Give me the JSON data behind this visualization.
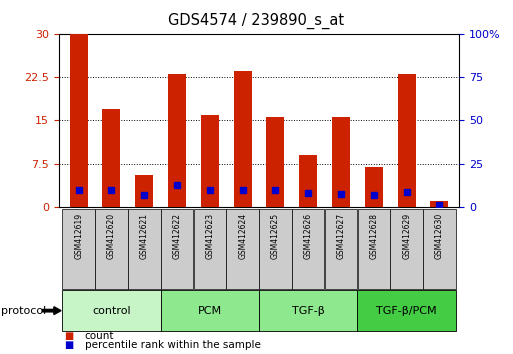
{
  "title": "GDS4574 / 239890_s_at",
  "samples": [
    "GSM412619",
    "GSM412620",
    "GSM412621",
    "GSM412622",
    "GSM412623",
    "GSM412624",
    "GSM412625",
    "GSM412626",
    "GSM412627",
    "GSM412628",
    "GSM412629",
    "GSM412630"
  ],
  "count_values": [
    30,
    17,
    5.5,
    23,
    16,
    23.5,
    15.5,
    9,
    15.5,
    7,
    23,
    1
  ],
  "percentile_values": [
    10,
    10,
    7,
    13,
    10,
    10,
    10,
    8,
    7.5,
    7,
    8.5,
    1
  ],
  "ylim_left": [
    0,
    30
  ],
  "ylim_right": [
    0,
    100
  ],
  "yticks_left": [
    0,
    7.5,
    15,
    22.5,
    30
  ],
  "ytick_labels_left": [
    "0",
    "7.5",
    "15",
    "22.5",
    "30"
  ],
  "yticks_right": [
    0,
    25,
    50,
    75,
    100
  ],
  "ytick_labels_right": [
    "0",
    "25",
    "50",
    "75",
    "100%"
  ],
  "group_colors": [
    "#c8f5c8",
    "#8ee88e",
    "#8ee88e",
    "#44cc44"
  ],
  "groups": [
    {
      "label": "control",
      "start": 0,
      "end": 3
    },
    {
      "label": "PCM",
      "start": 3,
      "end": 6
    },
    {
      "label": "TGF-β",
      "start": 6,
      "end": 9
    },
    {
      "label": "TGF-β/PCM",
      "start": 9,
      "end": 12
    }
  ],
  "bar_color": "#cc2200",
  "marker_color": "#0000cc",
  "bar_width": 0.55,
  "background_color": "#ffffff",
  "tick_label_color_left": "#cc2200",
  "tick_label_color_right": "#0000cc",
  "sample_box_color": "#cccccc",
  "protocol_label": "protocol",
  "legend_count_label": "count",
  "legend_percentile_label": "percentile rank within the sample"
}
